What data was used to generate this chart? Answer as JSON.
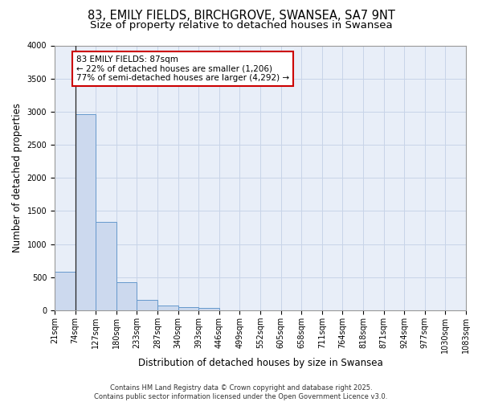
{
  "title_line1": "83, EMILY FIELDS, BIRCHGROVE, SWANSEA, SA7 9NT",
  "title_line2": "Size of property relative to detached houses in Swansea",
  "xlabel": "Distribution of detached houses by size in Swansea",
  "ylabel": "Number of detached properties",
  "bin_labels": [
    "21sqm",
    "74sqm",
    "127sqm",
    "180sqm",
    "233sqm",
    "287sqm",
    "340sqm",
    "393sqm",
    "446sqm",
    "499sqm",
    "552sqm",
    "605sqm",
    "658sqm",
    "711sqm",
    "764sqm",
    "818sqm",
    "871sqm",
    "924sqm",
    "977sqm",
    "1030sqm",
    "1083sqm"
  ],
  "bar_values": [
    580,
    2960,
    1340,
    430,
    155,
    75,
    48,
    35,
    0,
    0,
    0,
    0,
    0,
    0,
    0,
    0,
    0,
    0,
    0,
    0
  ],
  "bar_color": "#ccd9ee",
  "bar_edge_color": "#6699cc",
  "annotation_text_line1": "83 EMILY FIELDS: 87sqm",
  "annotation_text_line2": "← 22% of detached houses are smaller (1,206)",
  "annotation_text_line3": "77% of semi-detached houses are larger (4,292) →",
  "annotation_box_color": "#ffffff",
  "annotation_box_edge_color": "#cc0000",
  "ylim": [
    0,
    4000
  ],
  "yticks": [
    0,
    500,
    1000,
    1500,
    2000,
    2500,
    3000,
    3500,
    4000
  ],
  "grid_color": "#c8d4e8",
  "background_color": "#e8eef8",
  "footer_text": "Contains HM Land Registry data © Crown copyright and database right 2025.\nContains public sector information licensed under the Open Government Licence v3.0.",
  "title_fontsize": 10.5,
  "subtitle_fontsize": 9.5,
  "tick_fontsize": 7,
  "ylabel_fontsize": 8.5,
  "xlabel_fontsize": 8.5,
  "annotation_fontsize": 7.5,
  "footer_fontsize": 6
}
